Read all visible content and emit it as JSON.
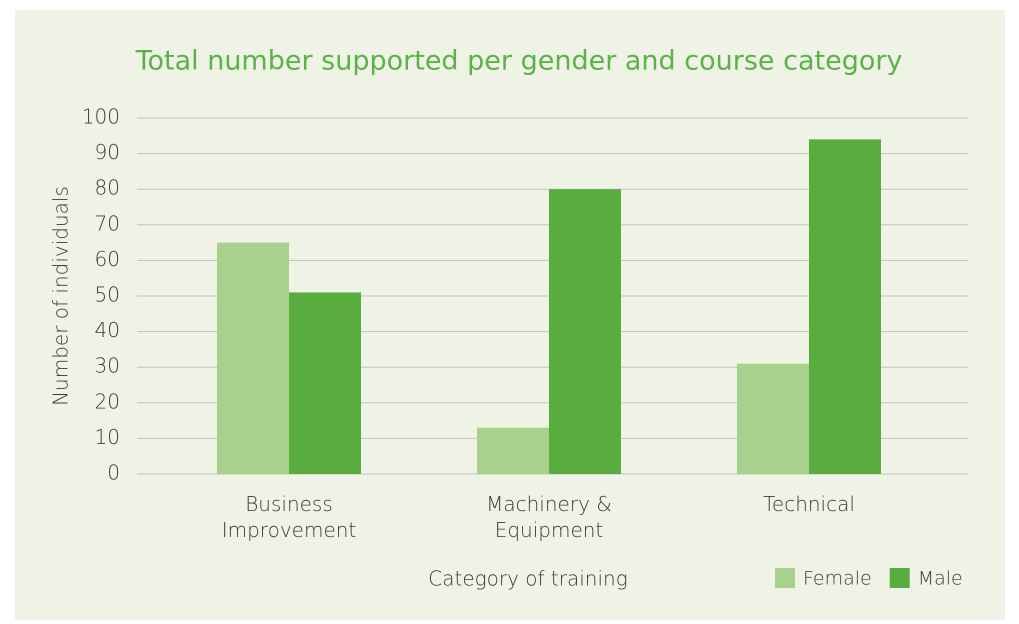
{
  "chart_data": {
    "type": "bar",
    "title": "Total number supported per gender and course category",
    "x_label": "Category of training",
    "y_label": "Number of individuals",
    "categories": [
      "Business Improvement",
      "Machinery & Equipment",
      "Technical"
    ],
    "series": [
      {
        "name": "Female",
        "color": "#a9d18e",
        "values": [
          65,
          13,
          31
        ]
      },
      {
        "name": "Male",
        "color": "#58ad3e",
        "values": [
          51,
          80,
          94
        ]
      }
    ],
    "ylim": [
      0,
      100
    ],
    "yticks": [
      0,
      10,
      20,
      30,
      40,
      50,
      60,
      70,
      80,
      90,
      100
    ],
    "grid": true,
    "legend": "bottom-right"
  }
}
